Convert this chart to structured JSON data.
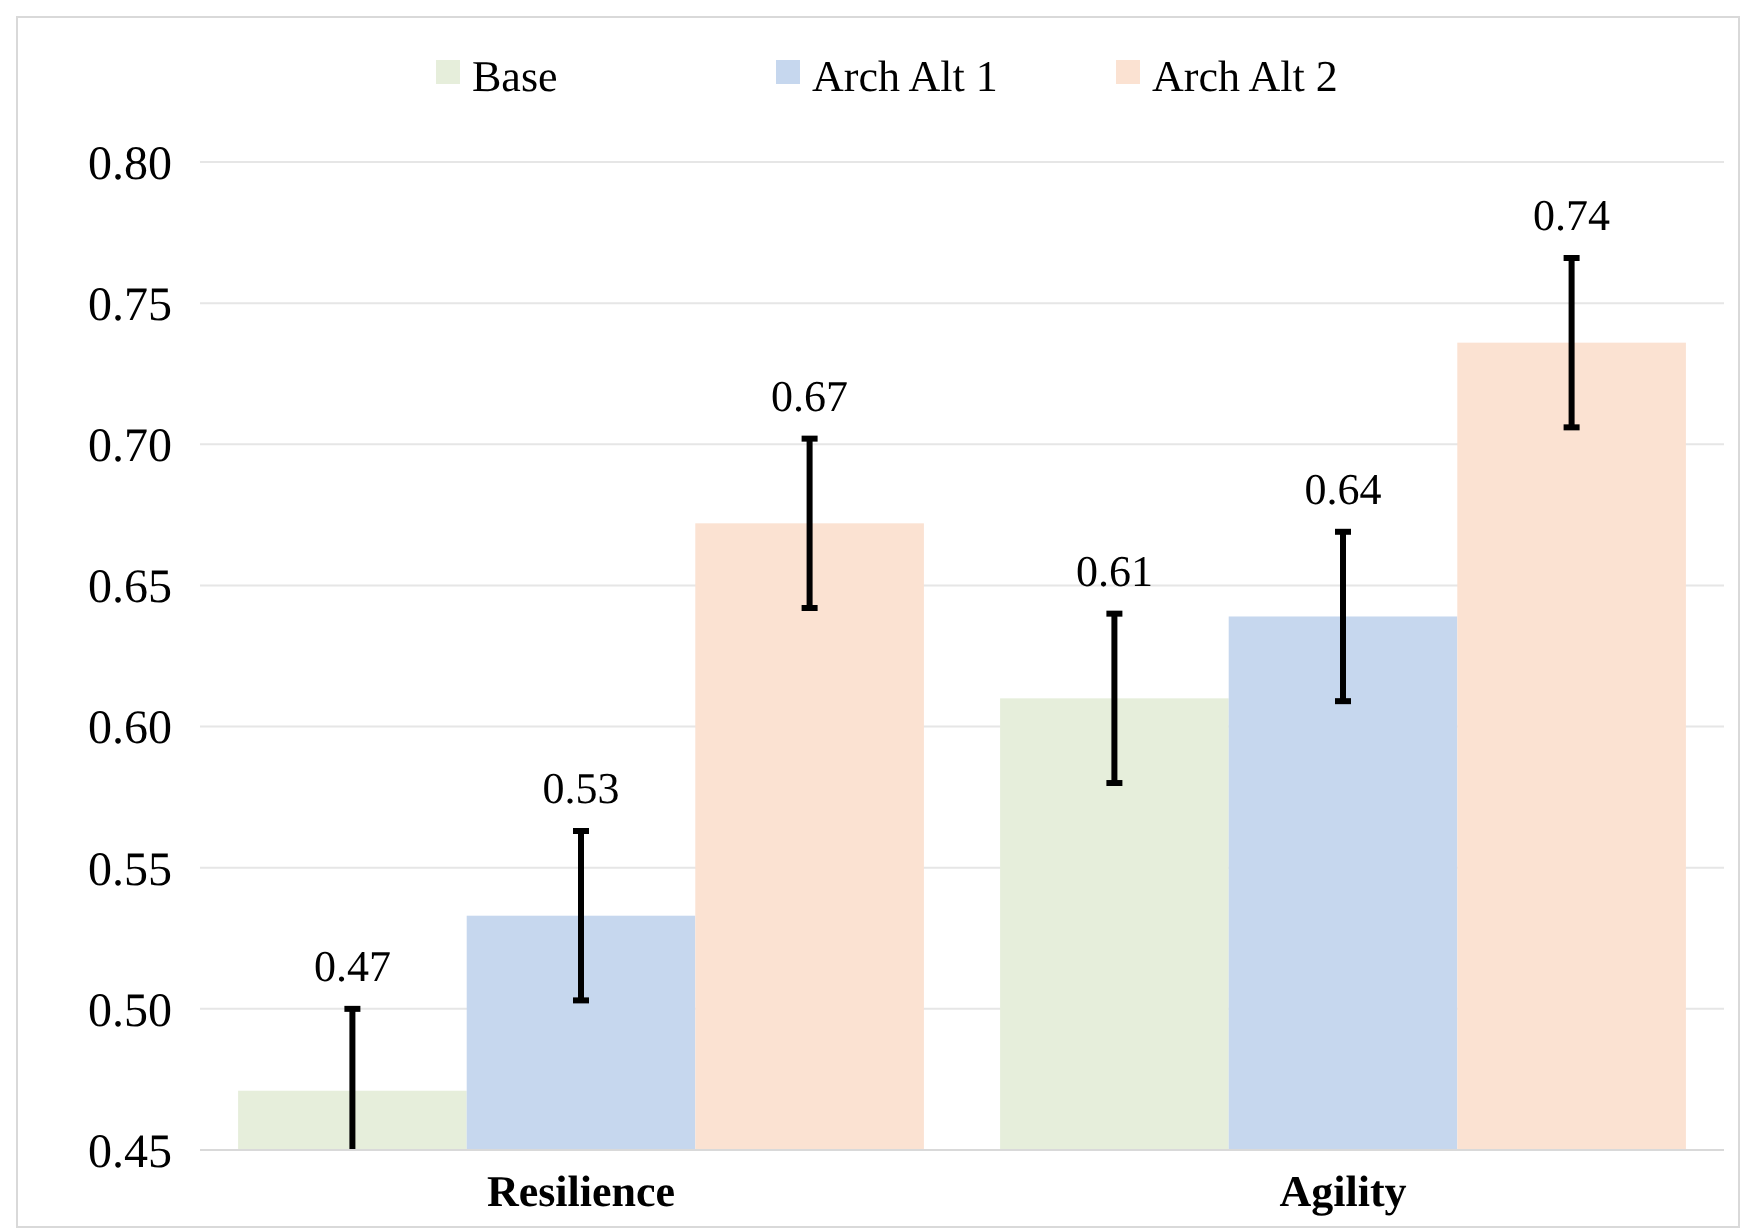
{
  "chart_data": {
    "type": "bar",
    "categories": [
      "Resilience",
      "Agility"
    ],
    "series": [
      {
        "name": "Base",
        "color": "#e6eedb",
        "values": [
          0.471,
          0.61
        ],
        "errors": [
          [
            0.45,
            0.5
          ],
          0.03
        ],
        "value_labels": [
          "0.47",
          "0.61"
        ]
      },
      {
        "name": "Arch Alt 1",
        "color": "#c6d7ee",
        "values": [
          0.533,
          0.639
        ],
        "errors": [
          0.03,
          0.03
        ],
        "value_labels": [
          "0.53",
          "0.64"
        ]
      },
      {
        "name": "Arch Alt 2",
        "color": "#fbe2d2",
        "values": [
          0.672,
          0.736
        ],
        "errors": [
          0.03,
          0.03
        ],
        "value_labels": [
          "0.67",
          "0.74"
        ]
      }
    ],
    "ylim": [
      0.45,
      0.8
    ],
    "yticks": [
      {
        "value": 0.45,
        "label": "0.45"
      },
      {
        "value": 0.5,
        "label": "0.50"
      },
      {
        "value": 0.55,
        "label": "0.55"
      },
      {
        "value": 0.6,
        "label": "0.60"
      },
      {
        "value": 0.65,
        "label": "0.65"
      },
      {
        "value": 0.7,
        "label": "0.70"
      },
      {
        "value": 0.75,
        "label": "0.75"
      },
      {
        "value": 0.8,
        "label": "0.80"
      }
    ],
    "grid": "y",
    "legend": "top"
  }
}
